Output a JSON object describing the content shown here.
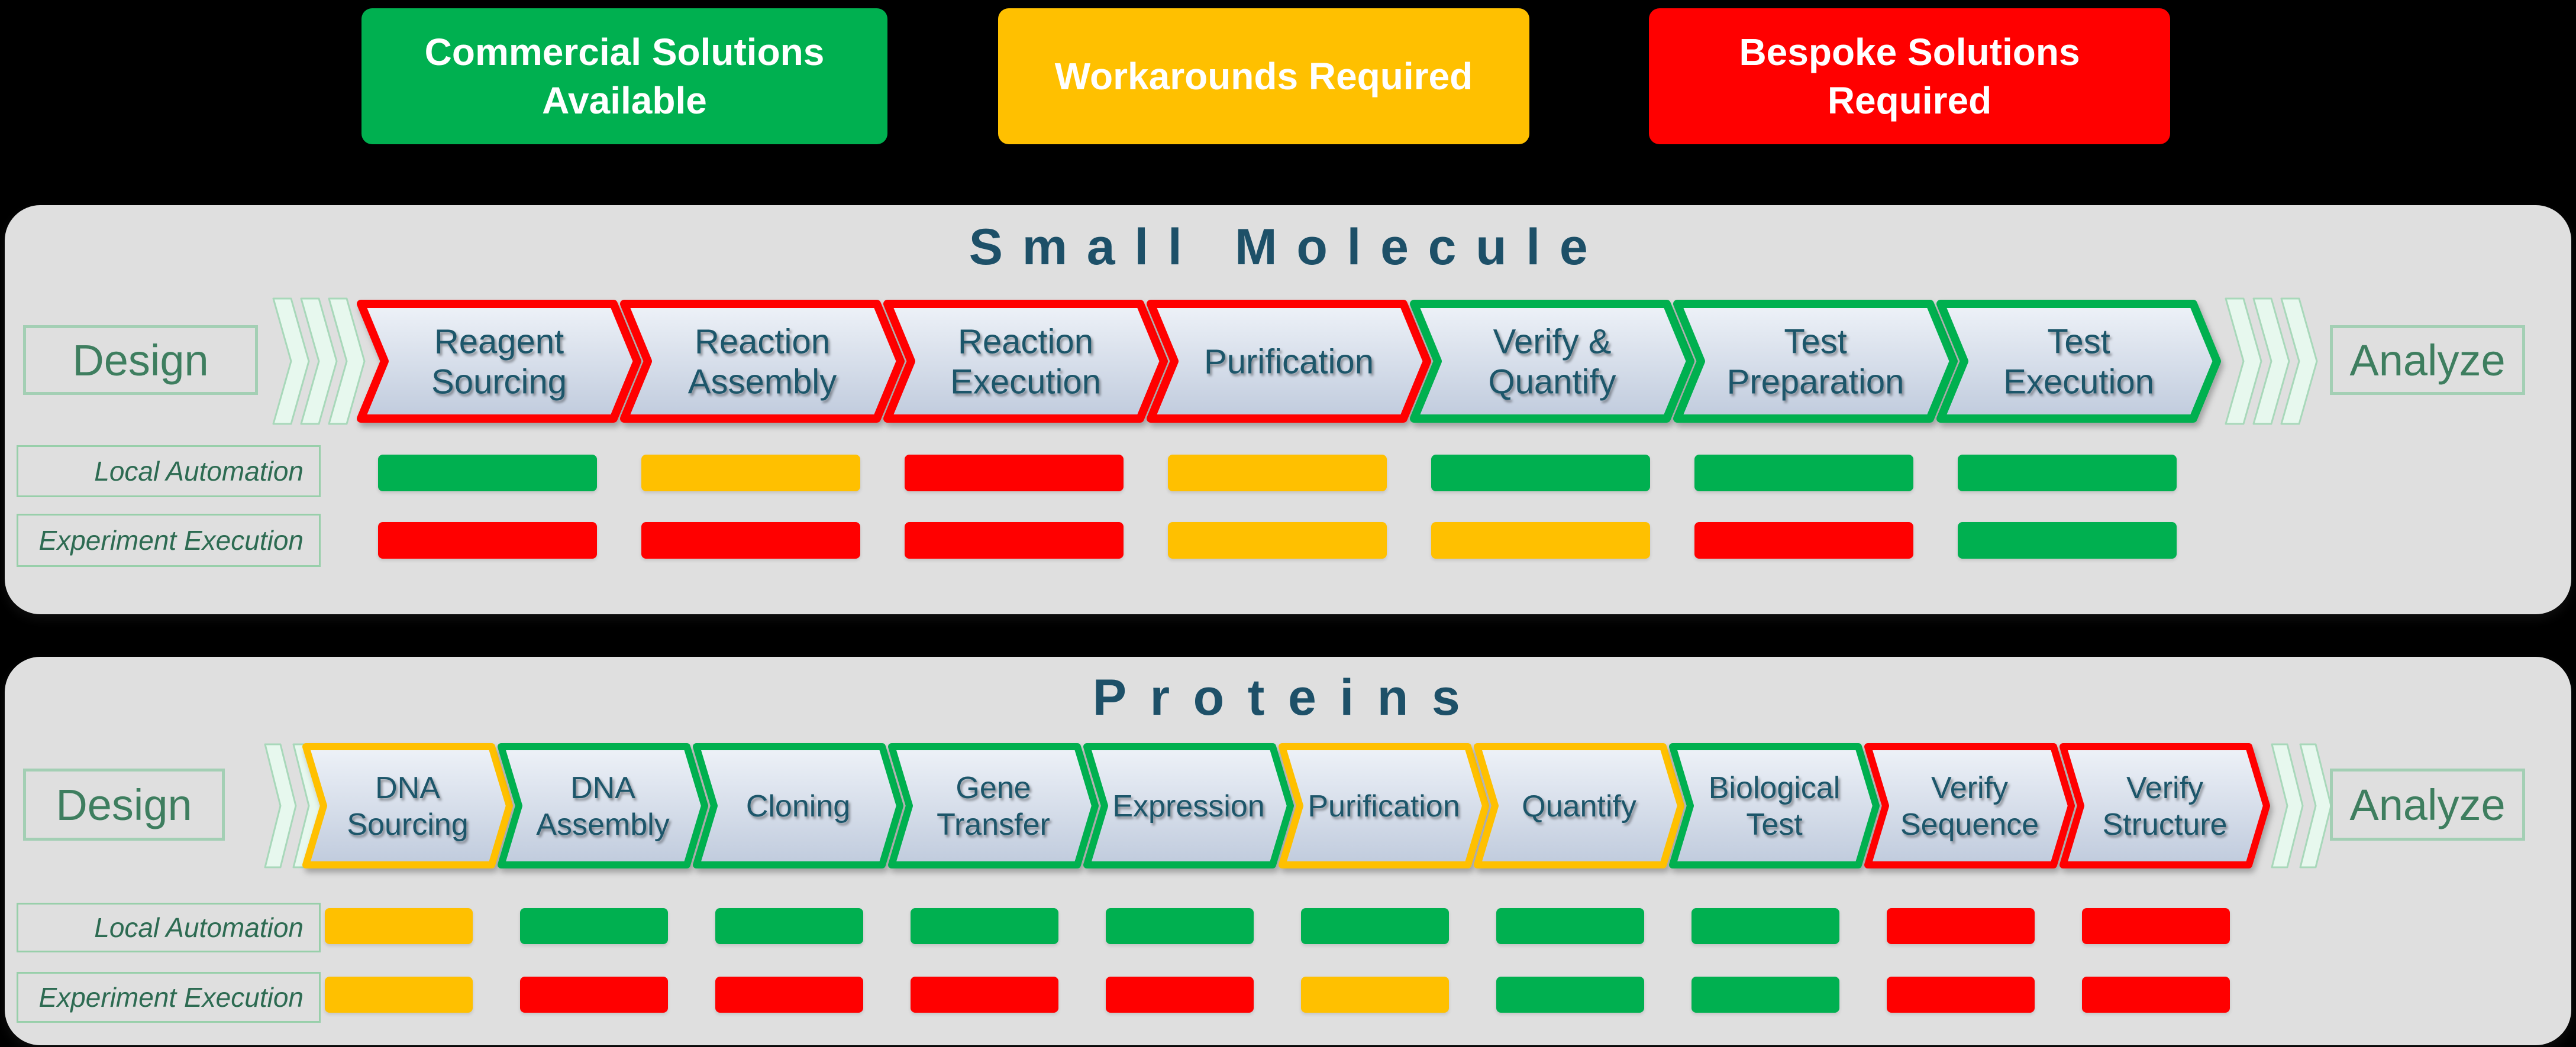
{
  "status_colors": {
    "commercial": "#00B050",
    "workaround": "#FFC000",
    "bespoke": "#FF0000"
  },
  "colors": {
    "background": "#000000",
    "panel_bg": "#dfdfdf",
    "heading_text": "#1d5068",
    "stage_text": "#1f566b",
    "stage_fill_top": "#eef2f8",
    "stage_fill_bottom": "#c0cbdd",
    "design_text": "#3e7e5f",
    "design_border": "#a3cfb4",
    "row_label_text": "#2d6b52",
    "row_label_border": "#98cfaa",
    "ff_fill": "#e7f8ee",
    "ff_border": "#a8d8ba",
    "legend_text": "#ffffff"
  },
  "legend": {
    "items": [
      {
        "label": "Commercial Solutions Available",
        "status": "commercial"
      },
      {
        "label": "Workarounds Required",
        "status": "workaround"
      },
      {
        "label": "Bespoke Solutions Required",
        "status": "bespoke"
      }
    ]
  },
  "sections": [
    {
      "title": "Small Molecule",
      "design_label": "Design",
      "analyze_label": "Analyze",
      "stages": [
        {
          "label_lines": [
            "Reagent",
            "Sourcing"
          ],
          "status": "bespoke"
        },
        {
          "label_lines": [
            "Reaction",
            "Assembly"
          ],
          "status": "bespoke"
        },
        {
          "label_lines": [
            "Reaction",
            "Execution"
          ],
          "status": "bespoke"
        },
        {
          "label_lines": [
            "Purification"
          ],
          "status": "bespoke"
        },
        {
          "label_lines": [
            "Verify &",
            "Quantify"
          ],
          "status": "commercial"
        },
        {
          "label_lines": [
            "Test",
            "Preparation"
          ],
          "status": "commercial"
        },
        {
          "label_lines": [
            "Test",
            "Execution"
          ],
          "status": "commercial"
        }
      ],
      "automation_rows": [
        {
          "label": "Local Automation",
          "values": [
            "commercial",
            "workaround",
            "bespoke",
            "workaround",
            "commercial",
            "commercial",
            "commercial"
          ]
        },
        {
          "label": "Experiment Execution",
          "values": [
            "bespoke",
            "bespoke",
            "bespoke",
            "workaround",
            "workaround",
            "bespoke",
            "commercial"
          ]
        }
      ]
    },
    {
      "title": "Proteins",
      "design_label": "Design",
      "analyze_label": "Analyze",
      "stages": [
        {
          "label_lines": [
            "DNA",
            "Sourcing"
          ],
          "status": "workaround"
        },
        {
          "label_lines": [
            "DNA",
            "Assembly"
          ],
          "status": "commercial"
        },
        {
          "label_lines": [
            "Cloning"
          ],
          "status": "commercial"
        },
        {
          "label_lines": [
            "Gene",
            "Transfer"
          ],
          "status": "commercial"
        },
        {
          "label_lines": [
            "Expression"
          ],
          "status": "commercial"
        },
        {
          "label_lines": [
            "Purification"
          ],
          "status": "workaround"
        },
        {
          "label_lines": [
            "Quantify"
          ],
          "status": "workaround"
        },
        {
          "label_lines": [
            "Biological",
            "Test"
          ],
          "status": "commercial"
        },
        {
          "label_lines": [
            "Verify",
            "Sequence"
          ],
          "status": "bespoke"
        },
        {
          "label_lines": [
            "Verify",
            "Structure"
          ],
          "status": "bespoke"
        }
      ],
      "automation_rows": [
        {
          "label": "Local Automation",
          "values": [
            "workaround",
            "commercial",
            "commercial",
            "commercial",
            "commercial",
            "commercial",
            "commercial",
            "commercial",
            "bespoke",
            "bespoke"
          ]
        },
        {
          "label": "Experiment Execution",
          "values": [
            "workaround",
            "bespoke",
            "bespoke",
            "bespoke",
            "bespoke",
            "workaround",
            "commercial",
            "commercial",
            "bespoke",
            "bespoke"
          ]
        }
      ]
    }
  ]
}
